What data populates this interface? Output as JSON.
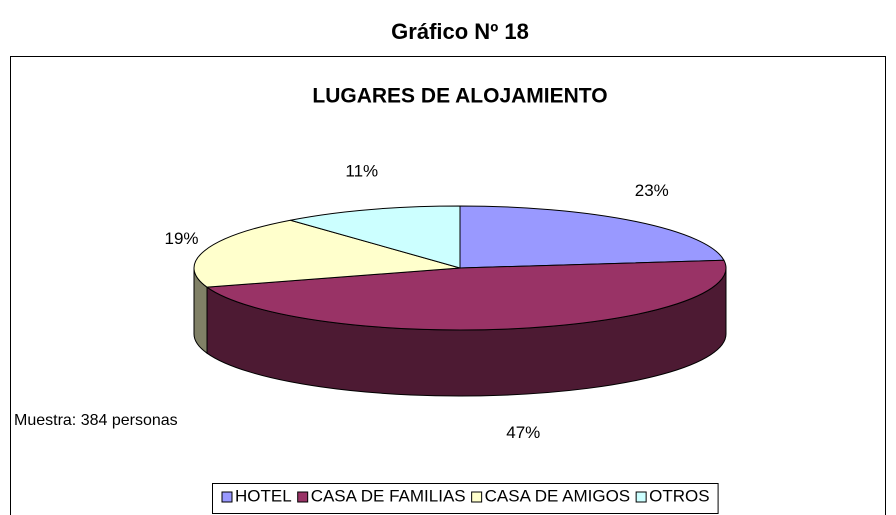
{
  "chart_data": {
    "type": "pie",
    "suptitle": "Gráfico Nº 18",
    "title": "LUGARES DE ALOJAMIENTO",
    "annotation": "Muestra: 384 personas",
    "categories": [
      "HOTEL",
      "CASA DE FAMILIAS",
      "CASA DE AMIGOS",
      "OTROS"
    ],
    "values": [
      23,
      47,
      19,
      11
    ],
    "value_labels": [
      "23%",
      "47%",
      "19%",
      "11%"
    ],
    "colors": [
      "#9999ff",
      "#993366",
      "#ffffcc",
      "#ccffff"
    ],
    "legend": "bottom"
  }
}
